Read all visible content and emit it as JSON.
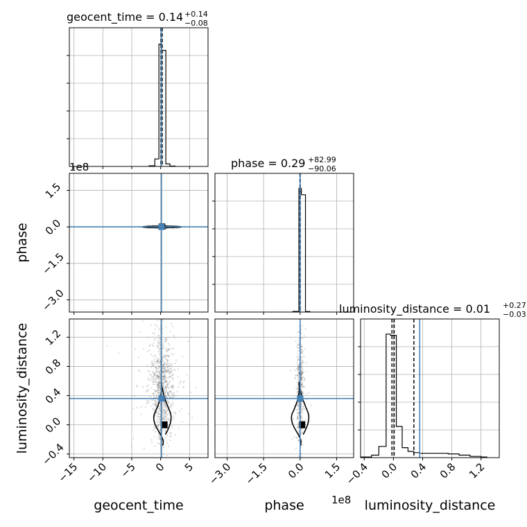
{
  "chart_data": {
    "type": "corner",
    "truth_color": "#4682b4",
    "hist_color": "#000000",
    "sample_color": "#555555",
    "grid": true,
    "params": [
      {
        "name": "geocent_time",
        "title_value": "0.14",
        "title_plus": "+0.14",
        "title_minus": "−0.08",
        "range": [
          -15.8,
          8.2
        ],
        "ticks": [
          -15,
          -10,
          -5,
          0,
          5
        ],
        "tick_labels": [
          "−15",
          "−10",
          "−5",
          "0",
          "5"
        ],
        "truth": 0.15,
        "quantiles": [
          0.06,
          0.14,
          0.28
        ]
      },
      {
        "name": "phase",
        "title_value": "0.29",
        "title_plus": "+82.99",
        "title_minus": "−90.06",
        "range": [
          -3.5,
          2.2
        ],
        "ticks": [
          -3.0,
          -1.5,
          0.0,
          1.5
        ],
        "tick_labels": [
          "−3.0",
          "−1.5",
          "0.0",
          "1.5"
        ],
        "offset_text": "1e8",
        "truth": 0.0,
        "quantiles": [
          -0.009,
          0.0,
          0.008
        ]
      },
      {
        "name": "luminosity_distance",
        "title_value": "0.01",
        "title_plus": "+0.27",
        "title_minus": "−0.03",
        "range": [
          -0.45,
          1.45
        ],
        "ticks": [
          -0.4,
          0.0,
          0.4,
          0.8,
          1.2
        ],
        "tick_labels": [
          "−0.4",
          "0.0",
          "0.4",
          "0.8",
          "1.2"
        ],
        "truth": 0.36,
        "quantiles": [
          -0.02,
          0.01,
          0.28
        ]
      }
    ],
    "diag_hist": [
      {
        "param": "geocent_time",
        "edges": [
          -2.0,
          -1.0,
          -0.3,
          0.2,
          0.9,
          1.6,
          2.5
        ],
        "values": [
          0.005,
          0.06,
          0.98,
          0.93,
          0.02,
          0.003
        ]
      },
      {
        "param": "phase",
        "edges": [
          -0.3,
          -0.05,
          0.05,
          0.22,
          0.4
        ],
        "values": [
          0.005,
          0.99,
          0.94,
          0.004
        ]
      },
      {
        "param": "luminosity_distance",
        "edges": [
          -0.45,
          -0.3,
          -0.2,
          -0.1,
          -0.04,
          0.04,
          0.12,
          0.2,
          0.28,
          0.36,
          0.5,
          0.75,
          0.9,
          1.05,
          1.2,
          1.28
        ],
        "values": [
          0.005,
          0.02,
          0.09,
          0.99,
          0.98,
          0.25,
          0.08,
          0.05,
          0.04,
          0.035,
          0.035,
          0.03,
          0.02,
          0.01,
          0.005
        ]
      }
    ],
    "offdiag": [
      {
        "x_param": "geocent_time",
        "y_param": "phase",
        "truth": [
          0.15,
          0.0
        ],
        "centroid": [
          0.2,
          0.0
        ],
        "spread": [
          0.6,
          0.025
        ],
        "samples_n": 260
      },
      {
        "x_param": "geocent_time",
        "y_param": "luminosity_distance",
        "truth": [
          0.15,
          0.36
        ],
        "centroid": [
          0.2,
          0.5
        ],
        "spread": [
          0.9,
          0.35
        ],
        "samples_n": 900,
        "contour_mode": [
          0.6,
          0.0
        ]
      },
      {
        "x_param": "phase",
        "y_param": "luminosity_distance",
        "truth": [
          0.0,
          0.36
        ],
        "centroid": [
          0.0,
          0.5
        ],
        "spread": [
          0.06,
          0.35
        ],
        "samples_n": 500,
        "contour_mode": [
          0.07,
          0.0
        ]
      }
    ]
  }
}
